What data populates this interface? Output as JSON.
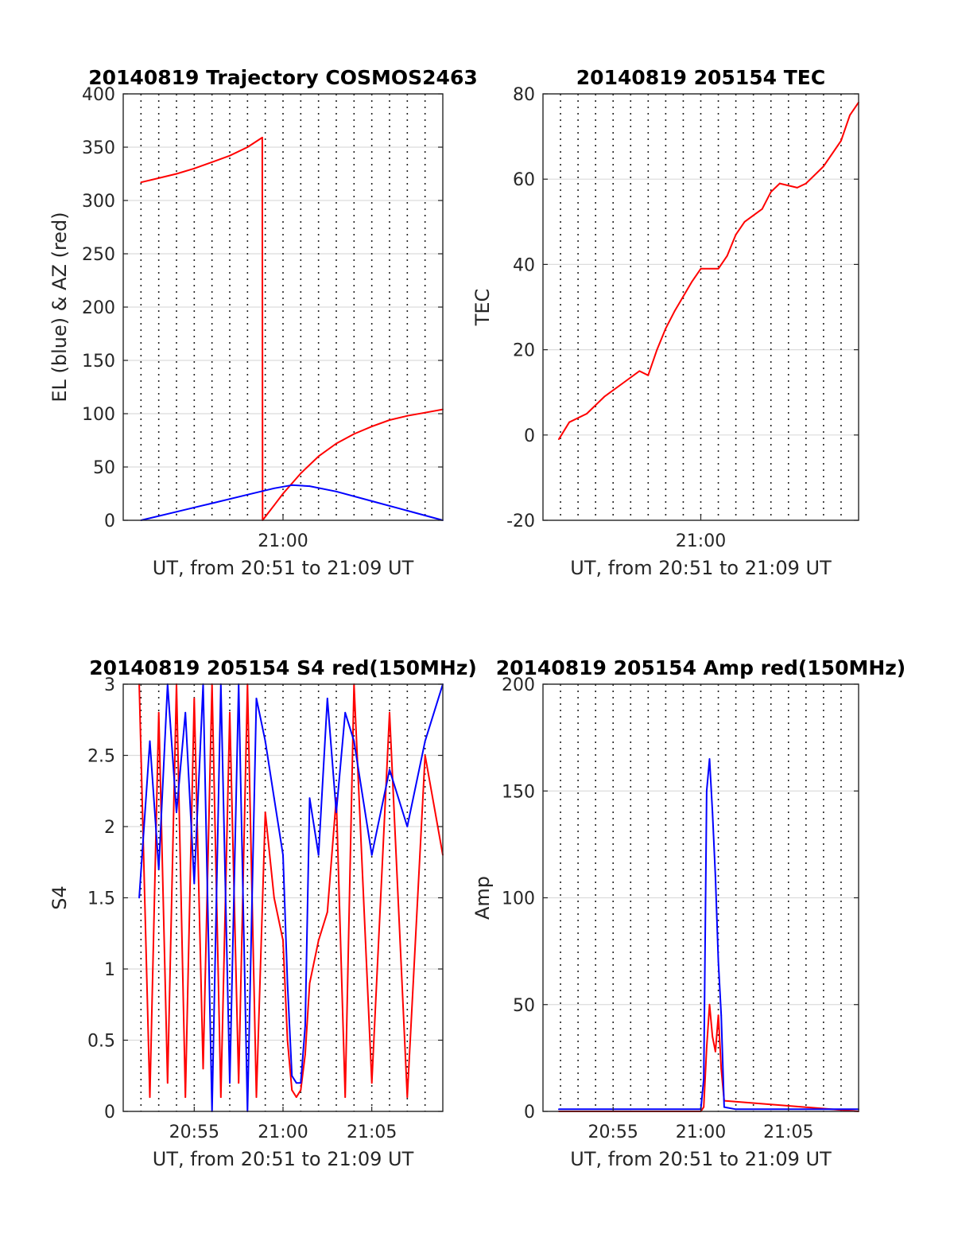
{
  "chart_data": [
    {
      "type": "line",
      "title": "20140819 Trajectory COSMOS2463",
      "xlabel": "UT, from 20:51 to 21:09 UT",
      "ylabel": "EL (blue) & AZ (red)",
      "xlim": [
        "20:51",
        "21:09"
      ],
      "ylim": [
        0,
        400
      ],
      "xticks": [
        "21:00"
      ],
      "yticks": [
        0,
        50,
        100,
        150,
        200,
        250,
        300,
        350,
        400
      ],
      "grid": true,
      "series": [
        {
          "color": "#ff0000",
          "x": [
            "20:52:00",
            "20:53:00",
            "20:54:00",
            "20:55:00",
            "20:56:00",
            "20:57:00",
            "20:58:00",
            "20:58:50",
            "20:58:51",
            "20:59:30",
            "21:00:00",
            "21:01:00",
            "21:02:00",
            "21:03:00",
            "21:04:00",
            "21:05:00",
            "21:06:00",
            "21:07:00",
            "21:08:00",
            "21:09:00"
          ],
          "values": [
            317,
            321,
            325,
            330,
            336,
            342,
            350,
            359,
            0,
            14,
            25,
            44,
            60,
            72,
            81,
            88,
            94,
            98,
            101,
            104
          ]
        },
        {
          "color": "#0000ff",
          "x": [
            "20:52:00",
            "20:54:00",
            "20:56:00",
            "20:58:00",
            "20:59:30",
            "21:00:30",
            "21:01:30",
            "21:03:00",
            "21:05:00",
            "21:07:00",
            "21:09:00"
          ],
          "values": [
            0,
            8,
            16,
            24,
            30,
            33,
            32,
            27,
            18,
            9,
            0
          ]
        }
      ]
    },
    {
      "type": "line",
      "title": "20140819 205154 TEC",
      "xlabel": "UT, from 20:51 to 21:09 UT",
      "ylabel": "TEC",
      "xlim": [
        "20:51",
        "21:09"
      ],
      "ylim": [
        -20,
        80
      ],
      "xticks": [
        "21:00"
      ],
      "yticks": [
        -20,
        0,
        20,
        40,
        60,
        80
      ],
      "grid": true,
      "series": [
        {
          "color": "#ff0000",
          "x": [
            "20:51:54",
            "20:52:30",
            "20:53:30",
            "20:54:30",
            "20:55:30",
            "20:56:30",
            "20:57:00",
            "20:57:30",
            "20:58:00",
            "20:58:30",
            "20:59:30",
            "21:00:00",
            "21:00:30",
            "21:01:00",
            "21:01:30",
            "21:02:00",
            "21:02:30",
            "21:03:30",
            "21:04:00",
            "21:04:30",
            "21:05:30",
            "21:06:00",
            "21:07:00",
            "21:08:00",
            "21:08:30",
            "21:09:00"
          ],
          "values": [
            -1,
            3,
            5,
            9,
            12,
            15,
            14,
            20,
            25,
            29,
            36,
            39,
            39,
            39,
            42,
            47,
            50,
            53,
            57,
            59,
            58,
            59,
            63,
            69,
            75,
            78
          ]
        }
      ]
    },
    {
      "type": "line",
      "title": "20140819 205154 S4 red(150MHz)",
      "xlabel": "UT, from 20:51 to 21:09 UT",
      "ylabel": "S4",
      "xlim": [
        "20:51",
        "21:09"
      ],
      "ylim": [
        0,
        3
      ],
      "xticks": [
        "20:55",
        "21:00",
        "21:05"
      ],
      "yticks": [
        0,
        0.5,
        1,
        1.5,
        2,
        2.5,
        3
      ],
      "grid": true,
      "series": [
        {
          "color": "#ff0000",
          "x": [
            "20:51:54",
            "20:52:30",
            "20:53:00",
            "20:53:30",
            "20:54:00",
            "20:54:30",
            "20:55:00",
            "20:55:30",
            "20:56:00",
            "20:56:30",
            "20:57:00",
            "20:57:30",
            "20:58:00",
            "20:58:30",
            "20:59:00",
            "20:59:30",
            "21:00:00",
            "21:00:15",
            "21:00:30",
            "21:00:45",
            "21:01:00",
            "21:01:15",
            "21:01:30",
            "21:02:00",
            "21:02:30",
            "21:03:00",
            "21:03:30",
            "21:04:00",
            "21:05:00",
            "21:06:00",
            "21:07:00",
            "21:08:00",
            "21:09:00"
          ],
          "values": [
            3,
            0.1,
            2.8,
            0.2,
            3,
            0.1,
            2.9,
            0.3,
            3,
            0.1,
            2.8,
            0.2,
            3,
            0.1,
            2.1,
            1.5,
            1.2,
            0.5,
            0.15,
            0.1,
            0.15,
            0.4,
            0.9,
            1.2,
            1.4,
            2.2,
            0.1,
            3,
            0.2,
            2.8,
            0.1,
            2.5,
            1.8
          ]
        },
        {
          "color": "#0000ff",
          "x": [
            "20:51:54",
            "20:52:30",
            "20:53:00",
            "20:53:30",
            "20:54:00",
            "20:54:30",
            "20:55:00",
            "20:55:30",
            "20:56:00",
            "20:56:30",
            "20:57:00",
            "20:57:30",
            "20:58:00",
            "20:58:30",
            "20:59:00",
            "20:59:30",
            "21:00:00",
            "21:00:15",
            "21:00:30",
            "21:00:45",
            "21:01:00",
            "21:01:15",
            "21:01:30",
            "21:02:00",
            "21:02:30",
            "21:03:00",
            "21:03:30",
            "21:04:00",
            "21:05:00",
            "21:06:00",
            "21:07:00",
            "21:08:00",
            "21:09:00"
          ],
          "values": [
            1.5,
            2.6,
            1.7,
            3,
            2.1,
            2.8,
            1.6,
            3,
            0,
            3,
            0.2,
            3,
            0,
            2.9,
            2.6,
            2.2,
            1.8,
            0.9,
            0.25,
            0.2,
            0.2,
            0.6,
            2.2,
            1.8,
            2.9,
            2.1,
            2.8,
            2.6,
            1.8,
            2.4,
            2.0,
            2.6,
            3
          ]
        }
      ]
    },
    {
      "type": "line",
      "title": "20140819 205154 Amp red(150MHz)",
      "xlabel": "UT, from 20:51 to 21:09 UT",
      "ylabel": "Amp",
      "xlim": [
        "20:51",
        "21:09"
      ],
      "ylim": [
        0,
        200
      ],
      "xticks": [
        "20:55",
        "21:00",
        "21:05"
      ],
      "yticks": [
        0,
        50,
        100,
        150,
        200
      ],
      "grid": true,
      "series": [
        {
          "color": "#ff0000",
          "x": [
            "20:51:54",
            "21:00:00",
            "21:00:10",
            "21:00:20",
            "21:00:30",
            "21:00:40",
            "21:00:50",
            "21:01:00",
            "21:01:10",
            "21:01:20",
            "21:09:00"
          ],
          "values": [
            0,
            0,
            2,
            30,
            50,
            35,
            28,
            45,
            20,
            5,
            0
          ]
        },
        {
          "color": "#0000ff",
          "x": [
            "20:51:54",
            "20:56:00",
            "21:00:00",
            "21:00:10",
            "21:00:20",
            "21:00:30",
            "21:00:40",
            "21:00:50",
            "21:01:00",
            "21:01:10",
            "21:01:20",
            "21:02:00",
            "21:09:00"
          ],
          "values": [
            1,
            1,
            1,
            15,
            150,
            165,
            140,
            110,
            70,
            45,
            2,
            1,
            1
          ]
        }
      ]
    }
  ]
}
